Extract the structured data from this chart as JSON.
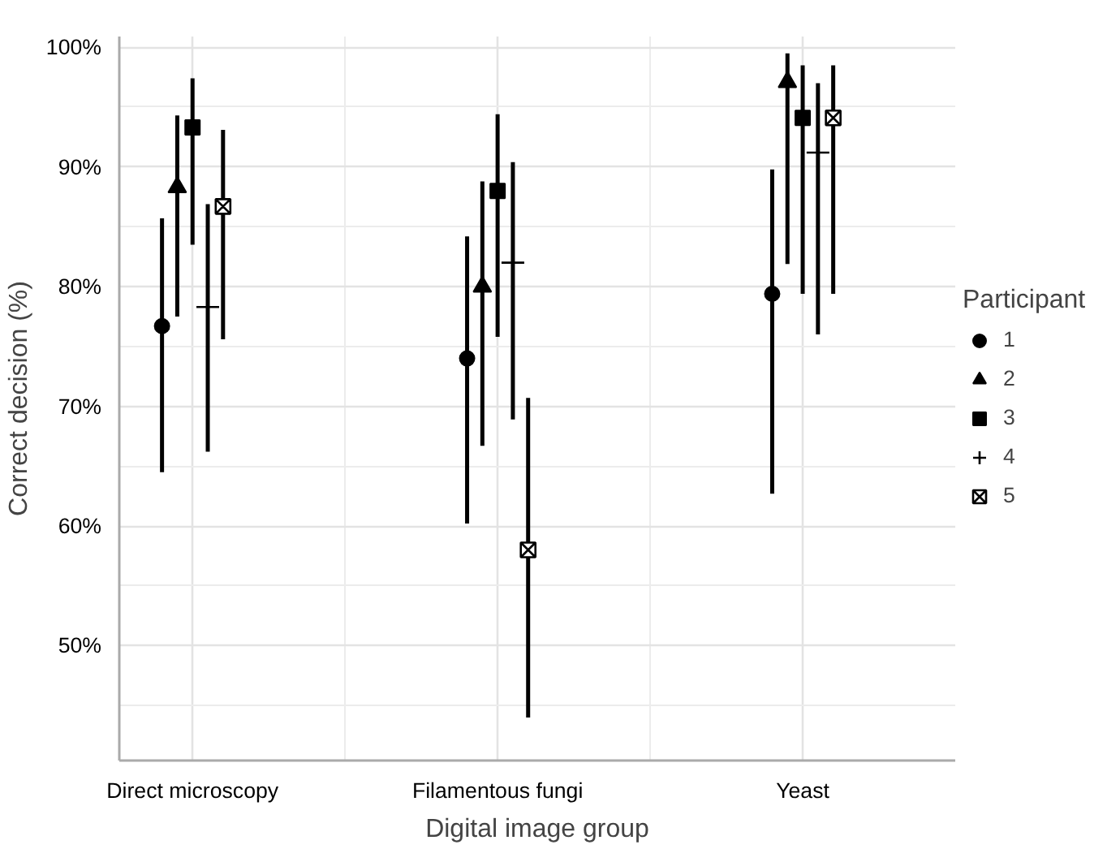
{
  "chart_data": {
    "type": "scatter",
    "xlabel": "Digital image group",
    "ylabel": "Correct decision (%)",
    "legend_title": "Participant",
    "legend": "right",
    "grid": true,
    "categories": [
      "Direct microscopy",
      "Filamentous fungi",
      "Yeast"
    ],
    "ylim": [
      40.4,
      100.9
    ],
    "yticks": [
      {
        "value": 50,
        "label": "50%"
      },
      {
        "value": 60,
        "label": "60%"
      },
      {
        "value": 70,
        "label": "70%"
      },
      {
        "value": 80,
        "label": "80%"
      },
      {
        "value": 90,
        "label": "90%"
      },
      {
        "value": 100,
        "label": "100%"
      }
    ],
    "series": [
      {
        "name": "1",
        "color": "#000000",
        "marker": "circle",
        "values": [
          76.7,
          74.0,
          79.4
        ],
        "errors": [
          [
            64.5,
            85.7
          ],
          [
            60.2,
            84.2
          ],
          [
            62.7,
            89.8
          ]
        ]
      },
      {
        "name": "2",
        "color": "#000000",
        "marker": "triangle",
        "values": [
          88.3,
          80.0,
          97.1
        ],
        "errors": [
          [
            77.5,
            94.3
          ],
          [
            66.7,
            88.8
          ],
          [
            81.9,
            99.5
          ]
        ]
      },
      {
        "name": "3",
        "color": "#000000",
        "marker": "square",
        "values": [
          93.3,
          88.0,
          94.1
        ],
        "errors": [
          [
            83.5,
            97.4
          ],
          [
            75.8,
            94.4
          ],
          [
            79.4,
            98.5
          ]
        ]
      },
      {
        "name": "4",
        "color": "#000000",
        "marker": "cross",
        "values": [
          78.3,
          82.0,
          91.2
        ],
        "errors": [
          [
            66.2,
            86.9
          ],
          [
            68.9,
            90.4
          ],
          [
            76.0,
            97.0
          ]
        ]
      },
      {
        "name": "5",
        "color": "#000000",
        "values": [
          86.7,
          58.0,
          94.1
        ],
        "errors": [
          [
            75.6,
            93.1
          ],
          [
            44.0,
            70.7
          ],
          [
            79.4,
            98.5
          ]
        ]
      }
    ]
  }
}
